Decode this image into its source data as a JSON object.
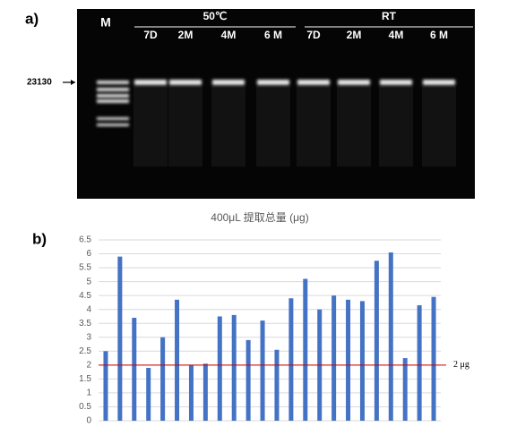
{
  "panel_a": {
    "label": "a)",
    "marker": "M",
    "size_marker": "23130",
    "groups": [
      {
        "name": "50℃",
        "lanes": [
          "7D",
          "2M",
          "4M",
          "6 M"
        ]
      },
      {
        "name": "RT",
        "lanes": [
          "7D",
          "2M",
          "4M",
          "6 M"
        ]
      }
    ]
  },
  "chart_data": {
    "type": "bar",
    "label": "b)",
    "title": "400μL 提取总量 (μg)",
    "categories": [
      null,
      null,
      null,
      null,
      null,
      null,
      null,
      null,
      null,
      null,
      null,
      null,
      null,
      null,
      null,
      null,
      null,
      null,
      null,
      null,
      null,
      null,
      null,
      null
    ],
    "values": [
      2.5,
      5.9,
      3.7,
      1.9,
      3.0,
      4.35,
      2.0,
      2.05,
      3.75,
      3.8,
      2.9,
      3.6,
      2.55,
      4.4,
      5.1,
      4.0,
      4.5,
      4.35,
      4.3,
      5.75,
      6.05,
      2.25,
      4.15,
      4.45
    ],
    "color": "#4472c4",
    "ylim": [
      0,
      6.5
    ],
    "yticks": [
      0,
      0.5,
      1,
      1.5,
      2,
      2.5,
      3,
      3.5,
      4,
      4.5,
      5,
      5.5,
      6,
      6.5
    ],
    "grid": true,
    "reference_line": {
      "value": 2,
      "label": "2 μg",
      "color": "#c00000"
    }
  }
}
